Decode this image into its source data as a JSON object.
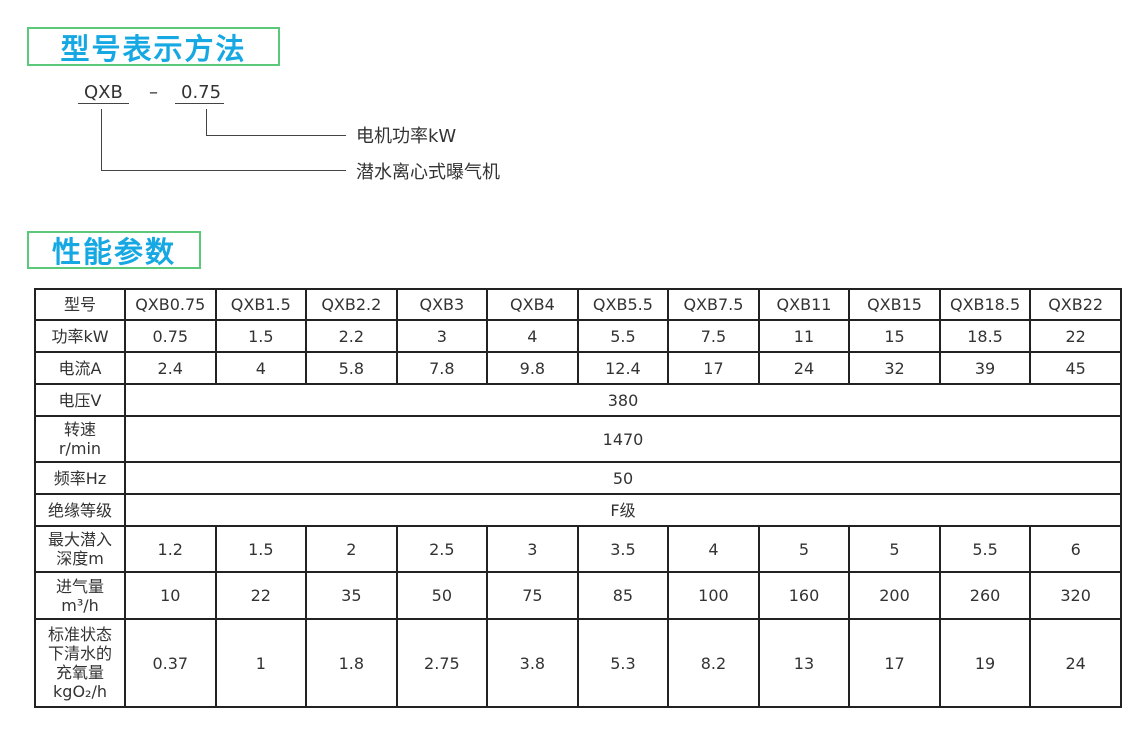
{
  "section1_title": "型号表示方法",
  "model_code": {
    "prefix": "QXB",
    "separator": "–",
    "power": "0.75",
    "power_meaning": "电机功率kW",
    "prefix_meaning": "潜水离心式曝气机"
  },
  "section2_title": "性能参数",
  "colors": {
    "title_text": "#16a8e2",
    "title_border": "#5cc87a"
  },
  "table": {
    "header": {
      "label": "型号",
      "values": [
        "QXB0.75",
        "QXB1.5",
        "QXB2.2",
        "QXB3",
        "QXB4",
        "QXB5.5",
        "QXB7.5",
        "QXB11",
        "QXB15",
        "QXB18.5",
        "QXB22"
      ]
    },
    "rows": [
      {
        "label": [
          "功率kW"
        ],
        "values": [
          "0.75",
          "1.5",
          "2.2",
          "3",
          "4",
          "5.5",
          "7.5",
          "11",
          "15",
          "18.5",
          "22"
        ]
      },
      {
        "label": [
          "电流A"
        ],
        "values": [
          "2.4",
          "4",
          "5.8",
          "7.8",
          "9.8",
          "12.4",
          "17",
          "24",
          "32",
          "39",
          "45"
        ]
      },
      {
        "label": [
          "电压V"
        ],
        "merged": "380"
      },
      {
        "label": [
          "转速",
          "r/min"
        ],
        "merged": "1470"
      },
      {
        "label": [
          "频率Hz"
        ],
        "merged": "50"
      },
      {
        "label": [
          "绝缘等级"
        ],
        "merged": "F级"
      },
      {
        "label": [
          "最大潜入",
          "深度m"
        ],
        "values": [
          "1.2",
          "1.5",
          "2",
          "2.5",
          "3",
          "3.5",
          "4",
          "5",
          "5",
          "5.5",
          "6"
        ]
      },
      {
        "label": [
          "进气量",
          "m³/h"
        ],
        "values": [
          "10",
          "22",
          "35",
          "50",
          "75",
          "85",
          "100",
          "160",
          "200",
          "260",
          "320"
        ]
      },
      {
        "label": [
          "标准状态",
          "下清水的",
          "充氧量",
          "kgO₂/h"
        ],
        "values": [
          "0.37",
          "1",
          "1.8",
          "2.75",
          "3.8",
          "5.3",
          "8.2",
          "13",
          "17",
          "19",
          "24"
        ]
      }
    ]
  }
}
